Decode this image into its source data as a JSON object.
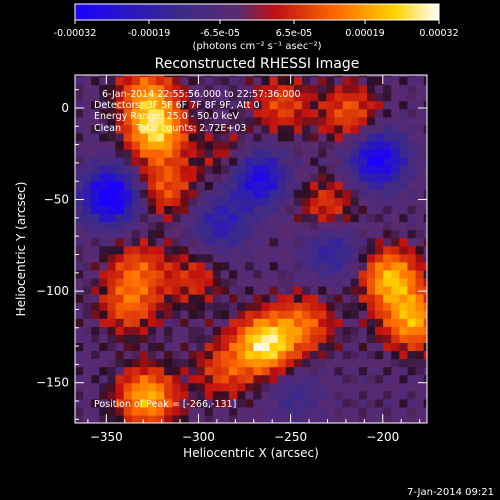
{
  "title": "Reconstructed RHESSI Image",
  "colorbar": {
    "ticks": [
      "-0.00032",
      "-0.00019",
      "-6.5e-05",
      "6.5e-05",
      "0.00019",
      "0.00032"
    ],
    "unit_label": "(photons cm⁻² s⁻¹ asec⁻²)",
    "colors": [
      "#1a00ff",
      "#3a2a8a",
      "#5a2a70",
      "#c01010",
      "#ff6a00",
      "#ffd400",
      "#ffffff"
    ]
  },
  "annotations": {
    "time_range": "6-Jan-2014 22:55:56.000 to 22:57:36.000",
    "detectors": "Detectors: 3F 5F 6F 7F 8F 9F, Att 0",
    "energy": "Energy Range: 25.0 - 50.0 keV",
    "clean": "Clean     Total counts: 2.72E+03",
    "peak": "Position of Peak = [-266,-131]"
  },
  "footer_date": "7-Jan-2014 09:21",
  "chart_data": {
    "type": "heatmap",
    "title": "Reconstructed RHESSI Image",
    "xlabel": "Heliocentric X (arcsec)",
    "ylabel": "Heliocentric Y (arcsec)",
    "xlim": [
      -367,
      -176
    ],
    "ylim": [
      -172,
      18
    ],
    "x_ticks": [
      -350,
      -300,
      -250,
      -200
    ],
    "y_ticks": [
      0,
      -50,
      -100,
      -150
    ],
    "x_tick_labels": [
      "−350",
      "−300",
      "−250",
      "−200"
    ],
    "y_tick_labels": [
      "0",
      "−50",
      "−100",
      "−150"
    ],
    "value_range": [
      -0.00032,
      0.00032
    ],
    "peak_position": [
      -266,
      -131
    ],
    "blobs": [
      {
        "x": -330,
        "y": 5,
        "intensity": 0.00019
      },
      {
        "x": -325,
        "y": -15,
        "intensity": 0.00028
      },
      {
        "x": -320,
        "y": -45,
        "intensity": 0.00015
      },
      {
        "x": -335,
        "y": -90,
        "intensity": 0.00014
      },
      {
        "x": -340,
        "y": -110,
        "intensity": 0.00015
      },
      {
        "x": -330,
        "y": -160,
        "intensity": 0.00025
      },
      {
        "x": -266,
        "y": -131,
        "intensity": 0.00032
      },
      {
        "x": -245,
        "y": -120,
        "intensity": 0.00016
      },
      {
        "x": -232,
        "y": -55,
        "intensity": 0.00012
      },
      {
        "x": -220,
        "y": -5,
        "intensity": 0.00015
      },
      {
        "x": -198,
        "y": -95,
        "intensity": 0.00026
      },
      {
        "x": -186,
        "y": -118,
        "intensity": 0.00024
      },
      {
        "x": -288,
        "y": -145,
        "intensity": 0.00013
      },
      {
        "x": -305,
        "y": -95,
        "intensity": 0.0001
      },
      {
        "x": -285,
        "y": -30,
        "intensity": 9e-05
      },
      {
        "x": -257,
        "y": 0,
        "intensity": 0.00013
      },
      {
        "x": -350,
        "y": -50,
        "intensity": -0.00032
      },
      {
        "x": -270,
        "y": -40,
        "intensity": -0.00026
      },
      {
        "x": -205,
        "y": -30,
        "intensity": -0.00028
      },
      {
        "x": -290,
        "y": -65,
        "intensity": -0.00016
      },
      {
        "x": -230,
        "y": -80,
        "intensity": -0.00014
      },
      {
        "x": -250,
        "y": -158,
        "intensity": -9e-05
      }
    ]
  }
}
